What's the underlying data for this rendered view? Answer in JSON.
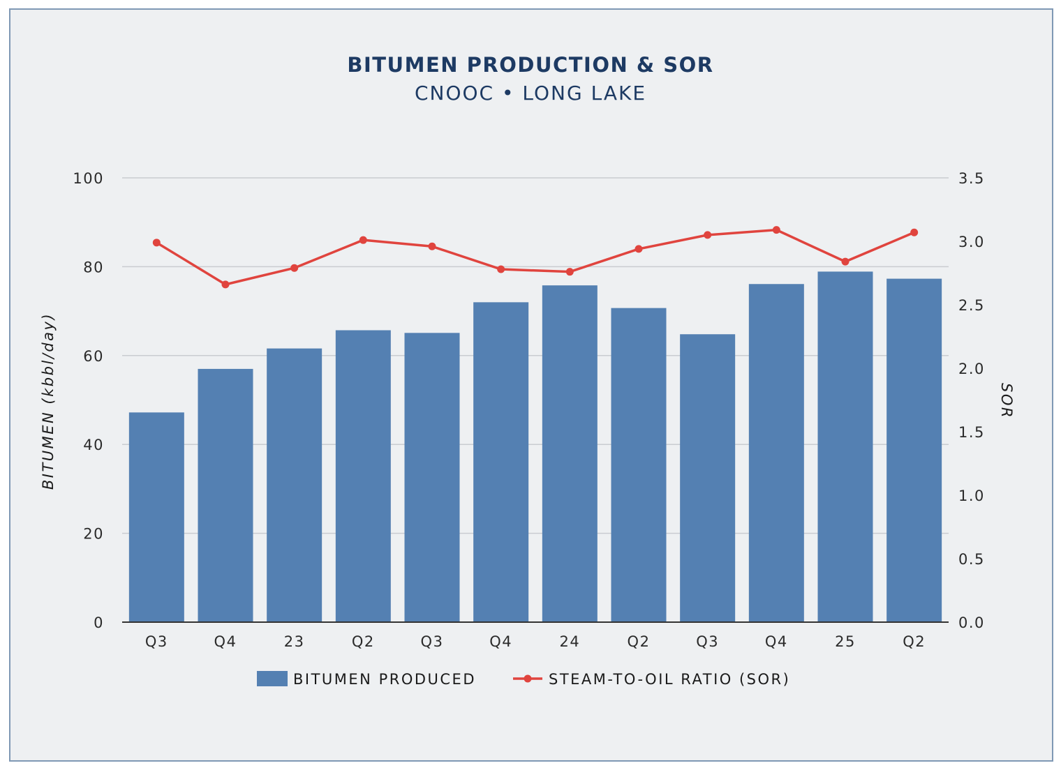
{
  "chart_data": {
    "type": "bar",
    "title": "BITUMEN PRODUCTION & SOR",
    "subtitle": "CNOOC • LONG LAKE",
    "categories": [
      "Q3",
      "Q4",
      "23",
      "Q2",
      "Q3",
      "Q4",
      "24",
      "Q2",
      "Q3",
      "Q4",
      "25",
      "Q2"
    ],
    "series": [
      {
        "name": "BITUMEN PRODUCED",
        "type": "bar",
        "axis": "left",
        "color": "#5480b2",
        "values": [
          47.2,
          57.0,
          61.6,
          65.7,
          65.1,
          72.0,
          75.8,
          70.7,
          64.8,
          76.1,
          78.9,
          77.3
        ]
      },
      {
        "name": "STEAM-TO-OIL RATIO (SOR)",
        "type": "line",
        "axis": "right",
        "color": "#e0443e",
        "values": [
          2.99,
          2.66,
          2.79,
          3.01,
          2.96,
          2.78,
          2.76,
          2.94,
          3.05,
          3.09,
          2.84,
          3.07
        ]
      }
    ],
    "ylabel": "BITUMEN (kbbl/day)",
    "y2label": "SOR",
    "ylim": [
      0,
      100
    ],
    "y2lim": [
      0,
      3.5
    ],
    "yticks": [
      "0",
      "20",
      "40",
      "60",
      "80",
      "100"
    ],
    "y2ticks": [
      "0.0",
      "0.5",
      "1.0",
      "1.5",
      "2.0",
      "2.5",
      "3.0",
      "3.5"
    ],
    "grid": true,
    "legend_position": "bottom-center"
  }
}
